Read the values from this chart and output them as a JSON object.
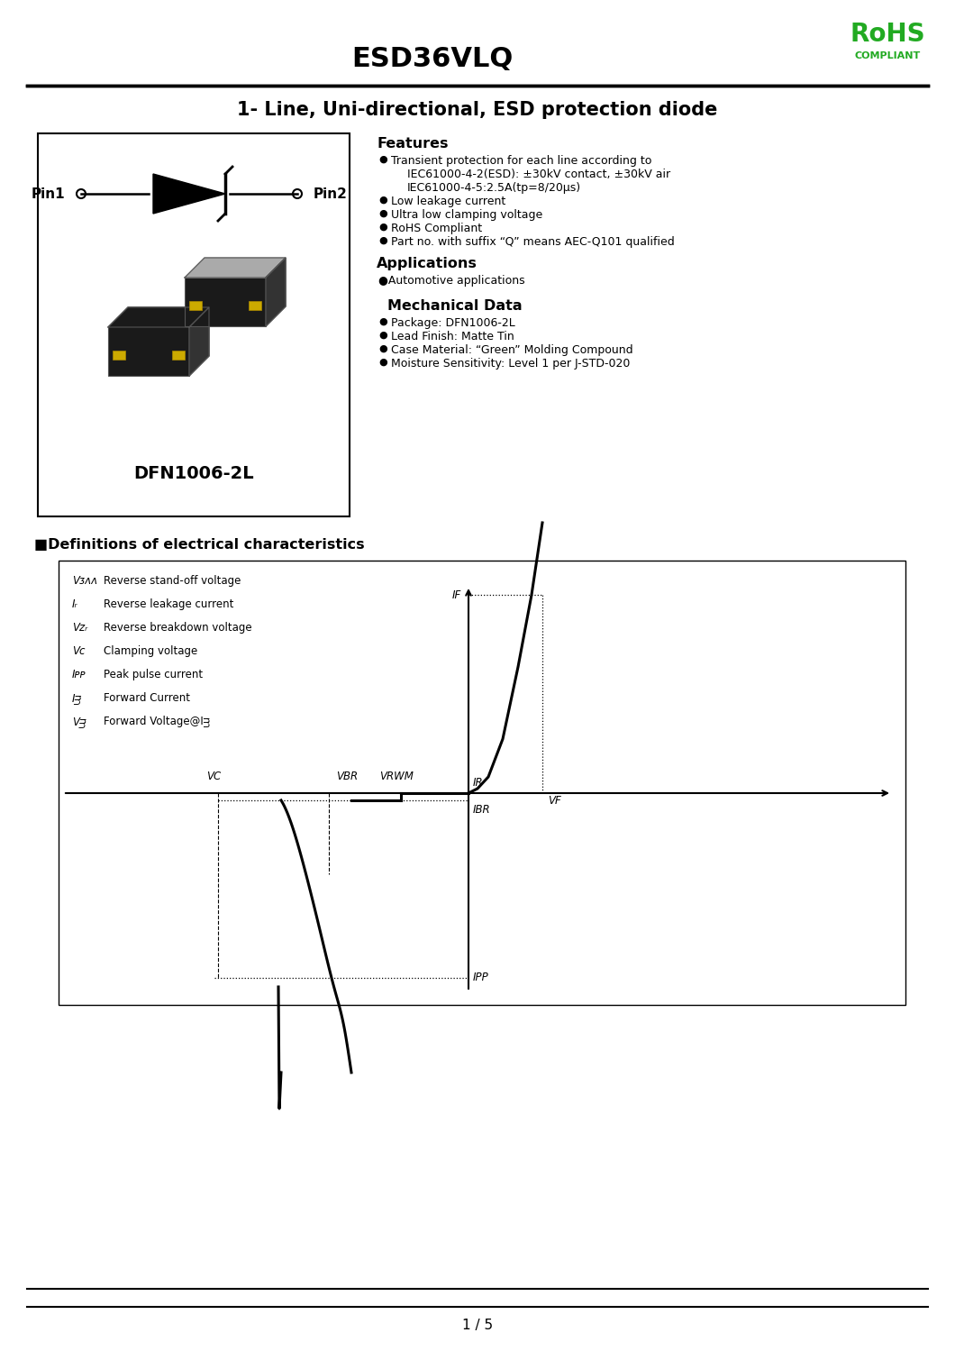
{
  "page_title": "ESD36VLQ",
  "rohs_text": "RoHS",
  "compliant_text": "COMPLIANT",
  "main_title": "1- Line, Uni-directional, ESD protection diode",
  "features_title": "Features",
  "features": [
    [
      "Transient protection for each line according to",
      "IEC61000-4-2(ESD): ±30kV contact, ±30kV air",
      "IEC61000-4-5:2.5A(tp=8/20μs)"
    ],
    [
      "Low leakage current"
    ],
    [
      "Ultra low clamping voltage"
    ],
    [
      "RoHS Compliant"
    ],
    [
      "Part no. with suffix “Q” means AEC-Q101 qualified"
    ]
  ],
  "applications_title": "Applications",
  "applications": [
    "Automotive applications"
  ],
  "mechanical_title": "Mechanical Data",
  "mechanical": [
    "Package: DFN1006-2L",
    "Lead Finish: Matte Tin",
    "Case Material: “Green” Molding Compound",
    "Moisture Sensitivity: Level 1 per J-STD-020"
  ],
  "package_label": "DFN1006-2L",
  "definitions_title": "■Definitions of electrical characteristics",
  "def_labels": [
    [
      "Vᴣᴧᴧ",
      "Reverse stand-off voltage"
    ],
    [
      "Iᵣ",
      "Reverse leakage current"
    ],
    [
      "Vᴢᵣ",
      "Reverse breakdown voltage"
    ],
    [
      "Vᴄ",
      "Clamping voltage"
    ],
    [
      "Iᴘᴘ",
      "Peak pulse current"
    ],
    [
      "Iᴟ",
      "Forward Current"
    ],
    [
      "Vᴟ",
      "Forward Voltage@Iᴟ"
    ]
  ],
  "background_color": "#ffffff",
  "text_color": "#000000",
  "rohs_color": "#22aa22",
  "page_number": "1 / 5"
}
